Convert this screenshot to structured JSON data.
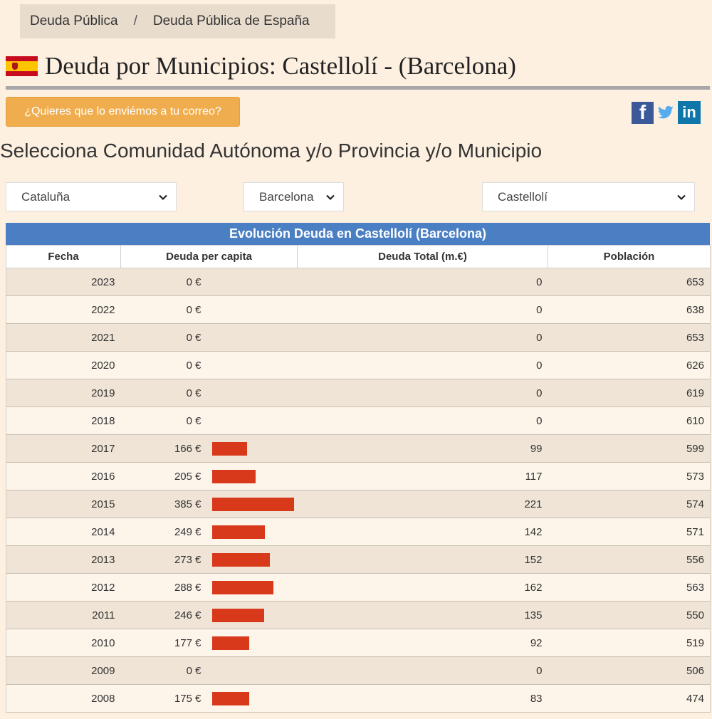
{
  "breadcrumb": {
    "item1": "Deuda Pública",
    "separator": "/",
    "item2": "Deuda Pública de España"
  },
  "page_title": "Deuda por Municipios: Castellolí - (Barcelona)",
  "email_button": "¿Quieres que lo enviémos a tu correo?",
  "social": {
    "facebook": "f",
    "linkedin": "in"
  },
  "select_heading": "Selecciona Comunidad Autónoma y/o Provincia y/o Municipio",
  "selects": {
    "comunidad": "Cataluña",
    "provincia": "Barcelona",
    "municipio": "Castellolí"
  },
  "table": {
    "title": "Evolución Deuda en Castellolí (Barcelona)",
    "headers": [
      "Fecha",
      "Deuda per capita",
      "Deuda Total (m.€)",
      "Población"
    ],
    "rows": [
      {
        "fecha": "2023",
        "per_capita": "0 €",
        "per_capita_value": 0,
        "total": "0",
        "poblacion": "653"
      },
      {
        "fecha": "2022",
        "per_capita": "0 €",
        "per_capita_value": 0,
        "total": "0",
        "poblacion": "638"
      },
      {
        "fecha": "2021",
        "per_capita": "0 €",
        "per_capita_value": 0,
        "total": "0",
        "poblacion": "653"
      },
      {
        "fecha": "2020",
        "per_capita": "0 €",
        "per_capita_value": 0,
        "total": "0",
        "poblacion": "626"
      },
      {
        "fecha": "2019",
        "per_capita": "0 €",
        "per_capita_value": 0,
        "total": "0",
        "poblacion": "619"
      },
      {
        "fecha": "2018",
        "per_capita": "0 €",
        "per_capita_value": 0,
        "total": "0",
        "poblacion": "610"
      },
      {
        "fecha": "2017",
        "per_capita": "166 €",
        "per_capita_value": 166,
        "total": "99",
        "poblacion": "599"
      },
      {
        "fecha": "2016",
        "per_capita": "205 €",
        "per_capita_value": 205,
        "total": "117",
        "poblacion": "573"
      },
      {
        "fecha": "2015",
        "per_capita": "385 €",
        "per_capita_value": 385,
        "total": "221",
        "poblacion": "574"
      },
      {
        "fecha": "2014",
        "per_capita": "249 €",
        "per_capita_value": 249,
        "total": "142",
        "poblacion": "571"
      },
      {
        "fecha": "2013",
        "per_capita": "273 €",
        "per_capita_value": 273,
        "total": "152",
        "poblacion": "556"
      },
      {
        "fecha": "2012",
        "per_capita": "288 €",
        "per_capita_value": 288,
        "total": "162",
        "poblacion": "563"
      },
      {
        "fecha": "2011",
        "per_capita": "246 €",
        "per_capita_value": 246,
        "total": "135",
        "poblacion": "550"
      },
      {
        "fecha": "2010",
        "per_capita": "177 €",
        "per_capita_value": 177,
        "total": "92",
        "poblacion": "519"
      },
      {
        "fecha": "2009",
        "per_capita": "0 €",
        "per_capita_value": 0,
        "total": "0",
        "poblacion": "506"
      },
      {
        "fecha": "2008",
        "per_capita": "175 €",
        "per_capita_value": 175,
        "total": "83",
        "poblacion": "474"
      }
    ]
  },
  "colors": {
    "background": "#fdf0e1",
    "bar": "#d9391b",
    "table_title": "#4a7fc4",
    "email_button": "#f0ad4e"
  },
  "icons": [
    "spain-flag-icon",
    "facebook-icon",
    "twitter-icon",
    "linkedin-icon",
    "chevron-down-icon"
  ]
}
